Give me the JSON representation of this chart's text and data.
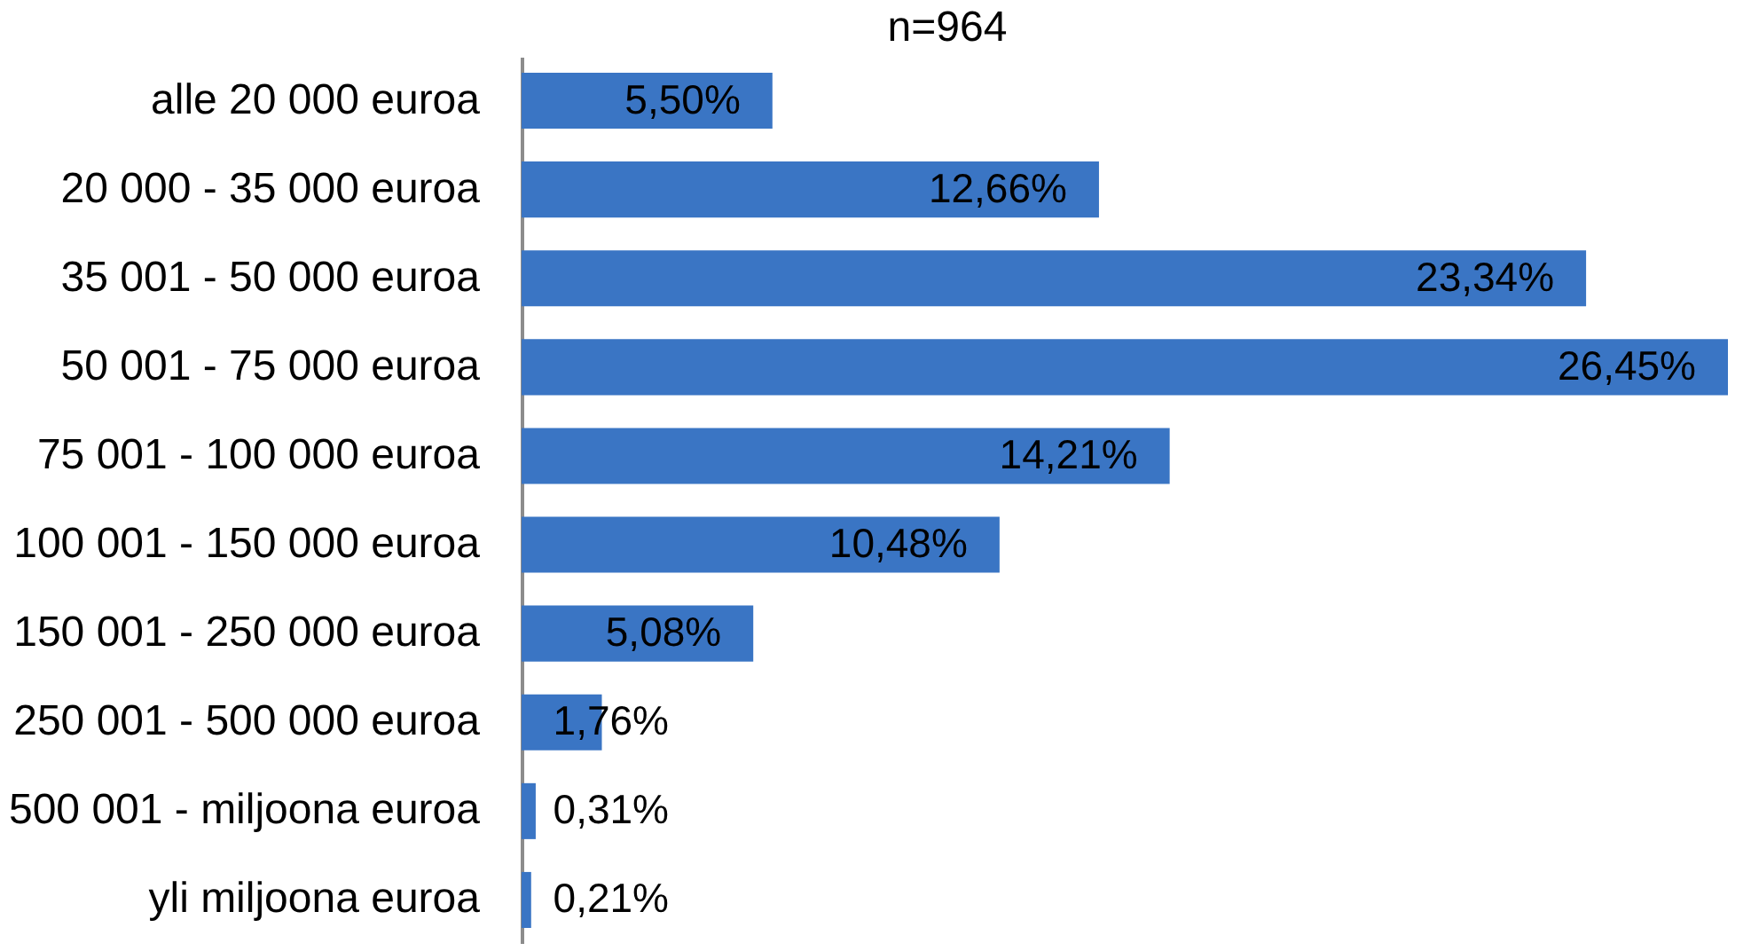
{
  "chart_data": {
    "type": "bar",
    "orientation": "horizontal",
    "title": "n=964",
    "categories": [
      "alle 20 000 euroa",
      "20 000 - 35 000 euroa",
      "35 001 - 50 000 euroa",
      "50 001 - 75 000 euroa",
      "75 001 - 100 000 euroa",
      "100 001 - 150 000 euroa",
      "150 001 - 250 000 euroa",
      "250 001 - 500 000 euroa",
      "500 001 - miljoona euroa",
      "yli miljoona euroa"
    ],
    "values": [
      5.5,
      12.66,
      23.34,
      26.45,
      14.21,
      10.48,
      5.08,
      1.76,
      0.31,
      0.21
    ],
    "value_labels": [
      "5,50%",
      "12,66%",
      "23,34%",
      "26,45%",
      "14,21%",
      "10,48%",
      "5,08%",
      "1,76%",
      "0,31%",
      "0,21%"
    ],
    "color": "#3a75c4",
    "tick_labels": "y"
  }
}
